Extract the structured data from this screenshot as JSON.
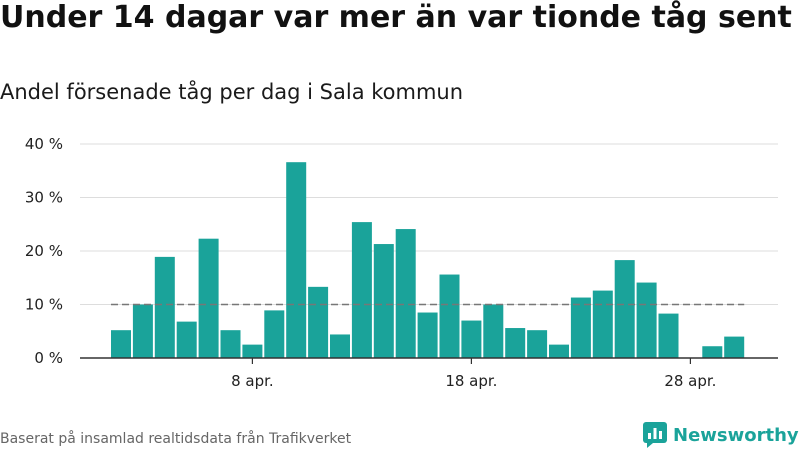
{
  "title": "Under 14 dagar var mer än var tionde tåg sent",
  "subtitle": "Andel försenade tåg per dag i Sala kommun",
  "footer": "Baserat på insamlad realtidsdata från Trafikverket",
  "brand": "Newsworthy",
  "colors": {
    "bar": "#1aa39a",
    "threshold": "#777777",
    "grid": "#dddddd",
    "axis": "#333333"
  },
  "chart_data": {
    "type": "bar",
    "title": "Andel försenade tåg per dag i Sala kommun",
    "xlabel": "",
    "ylabel": "",
    "ylim": [
      0,
      40
    ],
    "y_ticks": [
      0,
      10,
      20,
      30,
      40
    ],
    "y_tick_labels": [
      "0 %",
      "10 %",
      "20 %",
      "30 %",
      "40 %"
    ],
    "x_tick_labels": [
      {
        "day": 8,
        "label": "8 apr."
      },
      {
        "day": 18,
        "label": "18 apr."
      },
      {
        "day": 28,
        "label": "28 apr."
      }
    ],
    "days": [
      2,
      3,
      4,
      5,
      6,
      7,
      8,
      9,
      10,
      11,
      12,
      13,
      14,
      15,
      16,
      17,
      18,
      19,
      20,
      21,
      22,
      23,
      24,
      25,
      26,
      27,
      28,
      29,
      30
    ],
    "values": [
      5.2,
      10,
      18.9,
      6.8,
      22.3,
      5.2,
      2.5,
      8.9,
      36.6,
      13.3,
      4.4,
      25.4,
      21.3,
      24.1,
      8.5,
      15.6,
      7,
      10,
      5.6,
      5.2,
      2.5,
      11.3,
      12.6,
      18.3,
      14.1,
      8.3,
      0,
      2.2,
      4
    ],
    "threshold": 10,
    "grid": true,
    "legend": "none"
  }
}
